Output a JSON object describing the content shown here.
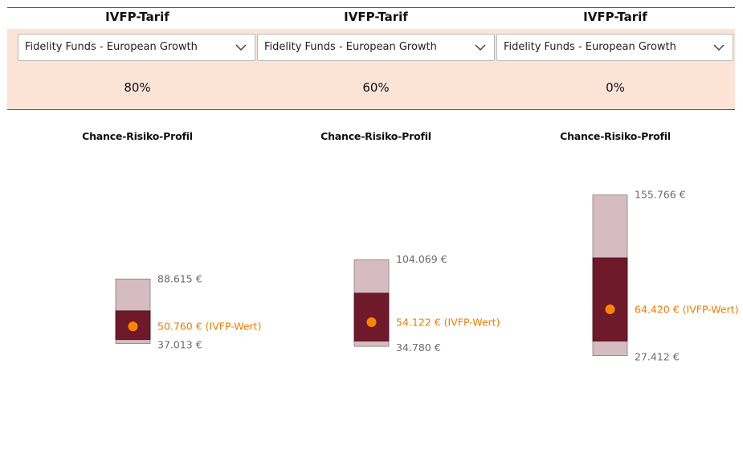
{
  "columns": [
    {
      "header": "IVFP-Tarif",
      "fund": "Fidelity Funds - European Growth",
      "percent": "80%",
      "profile_title": "Chance-Risiko-Profil"
    },
    {
      "header": "IVFP-Tarif",
      "fund": "Fidelity Funds - European Growth",
      "percent": "60%",
      "profile_title": "Chance-Risiko-Profil"
    },
    {
      "header": "IVFP-Tarif",
      "fund": "Fidelity Funds - European Growth",
      "percent": "0%",
      "profile_title": "Chance-Risiko-Profil"
    }
  ],
  "colors": {
    "light_bar": "#d4bcc1",
    "dark_bar": "#6e1a2a",
    "dot": "#ff8400",
    "value_text": "#f07c00",
    "label_text": "#6b6b6b",
    "band": "#fbe3d6"
  },
  "chart_data": [
    {
      "type": "range_bar",
      "title": "Chance-Risiko-Profil",
      "max": 88615,
      "upper_quartile": 63200,
      "median": 50760,
      "lower_quartile": 40200,
      "min": 37013,
      "max_label": "88.615 €",
      "value_label": "50.760 €",
      "min_label": "37.013 €",
      "value_suffix": "(IVFP-Wert)"
    },
    {
      "type": "range_bar",
      "title": "Chance-Risiko-Profil",
      "max": 104069,
      "upper_quartile": 77300,
      "median": 54122,
      "lower_quartile": 39000,
      "min": 34780,
      "max_label": "104.069 €",
      "value_label": "54.122 €",
      "min_label": "34.780 €",
      "value_suffix": "(IVFP-Wert)"
    },
    {
      "type": "range_bar",
      "title": "Chance-Risiko-Profil",
      "max": 155766,
      "upper_quartile": 105500,
      "median": 64420,
      "lower_quartile": 39000,
      "min": 27412,
      "max_label": "155.766 €",
      "value_label": "64.420 €",
      "min_label": "27.412 €",
      "value_suffix": "(IVFP-Wert)"
    }
  ]
}
